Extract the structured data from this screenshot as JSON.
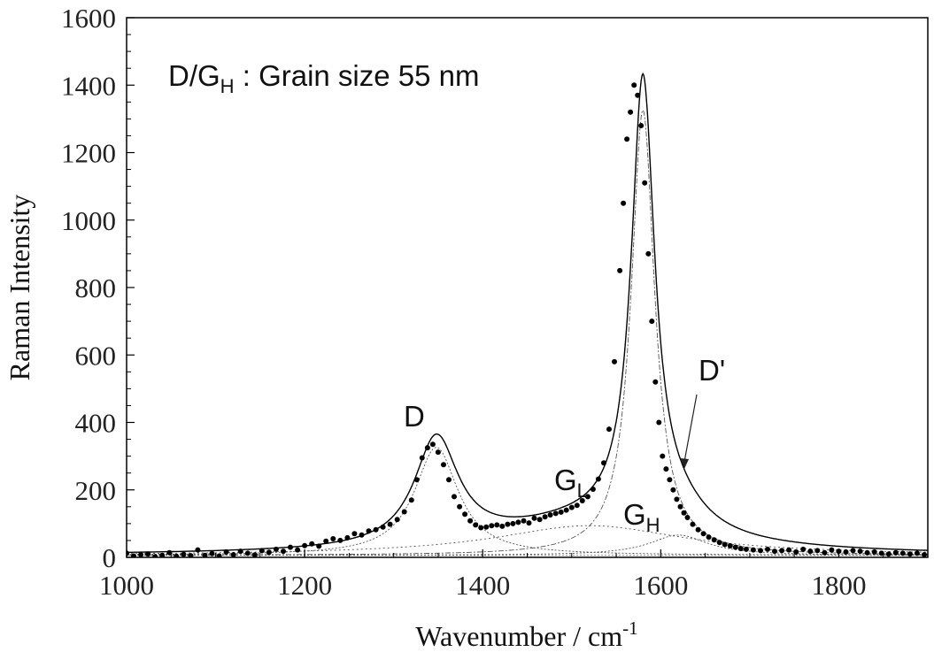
{
  "chart_data": {
    "type": "scatter",
    "title": "",
    "xlabel": "Wavenumber / cm",
    "xlabel_sup": "-1",
    "ylabel": "Raman Intensity",
    "xlim": [
      1000,
      1900
    ],
    "ylim": [
      0,
      1600
    ],
    "x_ticks": [
      1000,
      1200,
      1400,
      1600,
      1800
    ],
    "y_ticks": [
      0,
      200,
      400,
      600,
      800,
      1000,
      1200,
      1400,
      1600
    ],
    "grid": false,
    "legend": "none",
    "annotations": {
      "ratio_main": "D/G",
      "ratio_sub": "H",
      "ratio_rest": " : Grain size 55 nm",
      "d_label": "D",
      "gl_main": "G",
      "gl_sub": "L",
      "gh_main": "G",
      "gh_sub": "H",
      "dprime_label": "D'"
    },
    "peaks": {
      "D": {
        "center": 1348,
        "height": 320,
        "fwhm": 60
      },
      "G_L": {
        "center": 1520,
        "height": 88,
        "fwhm": 260
      },
      "G_H": {
        "center": 1580,
        "height": 1320,
        "fwhm": 32
      },
      "D_prime": {
        "center": 1620,
        "height": 60,
        "fwhm": 80
      }
    },
    "baseline": 6,
    "series": [
      {
        "x": [
          1000,
          1008,
          1016,
          1024,
          1032,
          1040,
          1048,
          1056,
          1064,
          1072,
          1080,
          1088,
          1096,
          1104,
          1112,
          1120,
          1128,
          1136,
          1144,
          1152,
          1160,
          1168,
          1176,
          1184,
          1192,
          1200,
          1208,
          1216,
          1224,
          1232,
          1240,
          1248,
          1256,
          1264,
          1272,
          1280,
          1288,
          1296,
          1304,
          1312,
          1320,
          1326,
          1332,
          1338,
          1344,
          1350,
          1356,
          1362,
          1368,
          1374,
          1380,
          1386,
          1392,
          1398,
          1404,
          1410,
          1416,
          1422,
          1428,
          1434,
          1440,
          1446,
          1452,
          1458,
          1464,
          1470,
          1476,
          1482,
          1488,
          1494,
          1500,
          1506,
          1512,
          1518,
          1524,
          1530,
          1536,
          1542,
          1548,
          1554,
          1558,
          1562,
          1566,
          1570,
          1574,
          1578,
          1582,
          1586,
          1590,
          1594,
          1598,
          1602,
          1606,
          1610,
          1614,
          1618,
          1622,
          1626,
          1630,
          1636,
          1642,
          1648,
          1654,
          1660,
          1666,
          1672,
          1678,
          1684,
          1690,
          1696,
          1704,
          1712,
          1720,
          1728,
          1736,
          1744,
          1752,
          1760,
          1768,
          1776,
          1784,
          1792,
          1800,
          1808,
          1816,
          1824,
          1832,
          1840,
          1848,
          1856,
          1864,
          1872,
          1880,
          1888,
          1896
        ],
        "y": [
          12,
          4,
          8,
          10,
          2,
          6,
          14,
          3,
          9,
          5,
          22,
          6,
          11,
          4,
          16,
          8,
          18,
          12,
          7,
          20,
          15,
          24,
          18,
          30,
          22,
          35,
          40,
          33,
          48,
          55,
          50,
          58,
          70,
          66,
          78,
          82,
          90,
          98,
          112,
          135,
          170,
          230,
          295,
          325,
          335,
          312,
          275,
          230,
          180,
          150,
          128,
          108,
          96,
          88,
          90,
          94,
          96,
          92,
          98,
          100,
          104,
          108,
          102,
          116,
          112,
          120,
          126,
          130,
          134,
          140,
          148,
          154,
          168,
          180,
          202,
          232,
          280,
          380,
          580,
          850,
          1050,
          1240,
          1320,
          1400,
          1370,
          1280,
          1110,
          900,
          700,
          520,
          400,
          300,
          262,
          230,
          200,
          172,
          150,
          132,
          118,
          98,
          82,
          70,
          60,
          52,
          44,
          38,
          34,
          30,
          26,
          24,
          22,
          20,
          24,
          18,
          20,
          22,
          16,
          24,
          18,
          20,
          14,
          22,
          18,
          16,
          20,
          18,
          14,
          16,
          12,
          10,
          14,
          12,
          10,
          12,
          8
        ]
      }
    ]
  }
}
